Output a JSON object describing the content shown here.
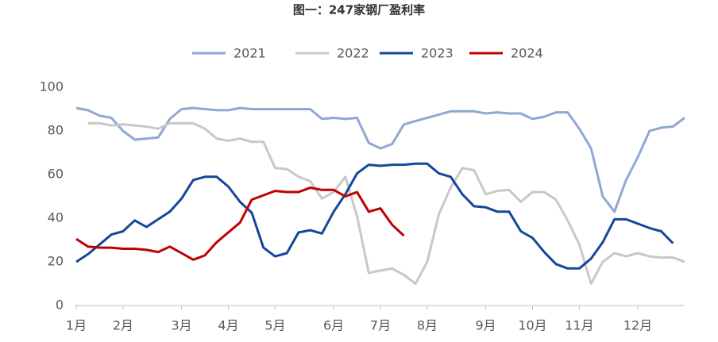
{
  "chart_data": {
    "type": "line",
    "title": "图一：247家钢厂盈利率",
    "categories": [
      "1月",
      null,
      null,
      null,
      "2月",
      null,
      null,
      null,
      null,
      "3月",
      null,
      null,
      null,
      "4月",
      null,
      null,
      null,
      "5月",
      null,
      null,
      null,
      null,
      "6月",
      null,
      null,
      null,
      "7月",
      null,
      null,
      null,
      "8月",
      null,
      null,
      null,
      null,
      "9月",
      null,
      null,
      null,
      "10月",
      null,
      null,
      null,
      "11月",
      null,
      null,
      null,
      null,
      "12月",
      null,
      null,
      null,
      null
    ],
    "ylim": [
      0,
      100
    ],
    "yticks": [
      0,
      20,
      40,
      60,
      80,
      100
    ],
    "grid": false,
    "legend": "top",
    "series": [
      {
        "name": "2021",
        "color": "#8fa8d2",
        "values": [
          90.5,
          89.5,
          87,
          86,
          80,
          76,
          76.5,
          77,
          85.5,
          90,
          90.5,
          90,
          89.5,
          89.5,
          90.5,
          90,
          90,
          90,
          90,
          90,
          90,
          85.5,
          86,
          85.5,
          86,
          74.5,
          72,
          74,
          83,
          84.5,
          86,
          87.5,
          89,
          89,
          89,
          88,
          88.5,
          88,
          88,
          85.5,
          86.5,
          88.5,
          88.5,
          81,
          72,
          50,
          43,
          57.5,
          68,
          80,
          81.5,
          82,
          86
        ]
      },
      {
        "name": "2022",
        "color": "#c8c8c8",
        "values": [
          null,
          83.5,
          83.5,
          82.5,
          83,
          82.5,
          82,
          81,
          83.5,
          83.5,
          83.5,
          81,
          76.5,
          75.5,
          76.5,
          75,
          75,
          63,
          62.5,
          59,
          57,
          49,
          52,
          59,
          41,
          15,
          16,
          17,
          14,
          10,
          20,
          42,
          54,
          63,
          62,
          51,
          52.5,
          53,
          47.5,
          52,
          52,
          48.5,
          39,
          28,
          10,
          20,
          24,
          22.5,
          24,
          22.5,
          22,
          22,
          20
        ]
      },
      {
        "name": "2023",
        "color": "#14479b",
        "values": [
          20,
          23.5,
          28,
          32.5,
          34,
          39,
          36,
          39.5,
          43,
          49,
          57.5,
          59,
          59,
          54.5,
          47.5,
          42.5,
          26.5,
          22.5,
          24,
          33.5,
          34.5,
          33,
          43,
          51,
          60.5,
          64.5,
          64,
          64.5,
          64.5,
          65,
          65,
          60.5,
          59,
          51,
          45.5,
          45,
          43,
          43,
          34,
          31,
          24.5,
          19,
          17,
          17,
          21.5,
          29,
          39.5,
          39.5,
          37.5,
          35.5,
          34,
          28.5,
          null
        ]
      },
      {
        "name": "2024",
        "color": "#c00000",
        "values": [
          30.5,
          27,
          26.5,
          26.5,
          26,
          26,
          25.5,
          24.5,
          27,
          24,
          21,
          23,
          29,
          33.5,
          38,
          48.5,
          50.5,
          52.5,
          52,
          52,
          54,
          53,
          53,
          50,
          52,
          43,
          44.5,
          37,
          32,
          null,
          null,
          null,
          null,
          null,
          null,
          null,
          null,
          null,
          null,
          null,
          null,
          null,
          null,
          null,
          null,
          null,
          null,
          null,
          null,
          null,
          null,
          null,
          null
        ]
      }
    ]
  }
}
